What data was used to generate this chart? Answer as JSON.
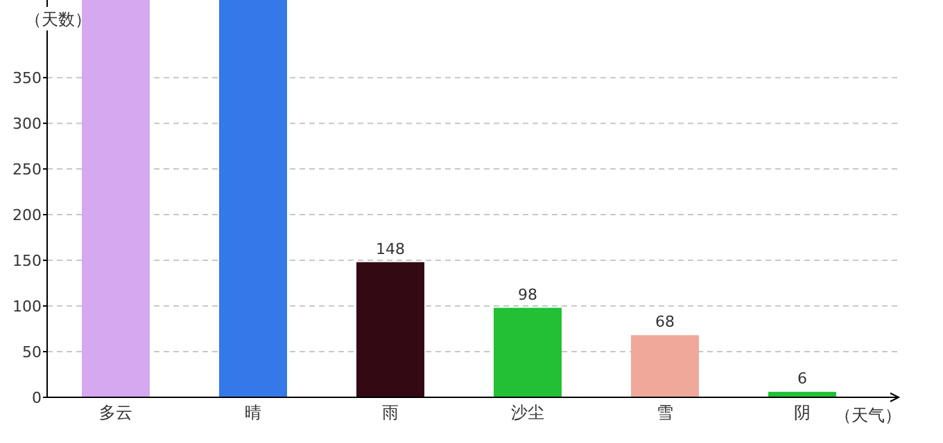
{
  "chart_data": {
    "type": "bar",
    "xlabel": "（天气）",
    "ylabel": "（天数）",
    "categories": [
      "多云",
      "晴",
      "雨",
      "沙尘",
      "雪",
      "阴"
    ],
    "values": [
      435,
      435,
      148,
      98,
      68,
      6
    ],
    "colors": [
      "#d6a8f0",
      "#3579e8",
      "#330a14",
      "#22c035",
      "#f0a89a",
      "#22c035"
    ],
    "value_labels": [
      null,
      null,
      "148",
      "98",
      "68",
      "6"
    ],
    "ylim": [
      0,
      435
    ],
    "yticks": [
      0,
      50,
      100,
      150,
      200,
      250,
      300,
      350
    ],
    "grid": "y"
  }
}
